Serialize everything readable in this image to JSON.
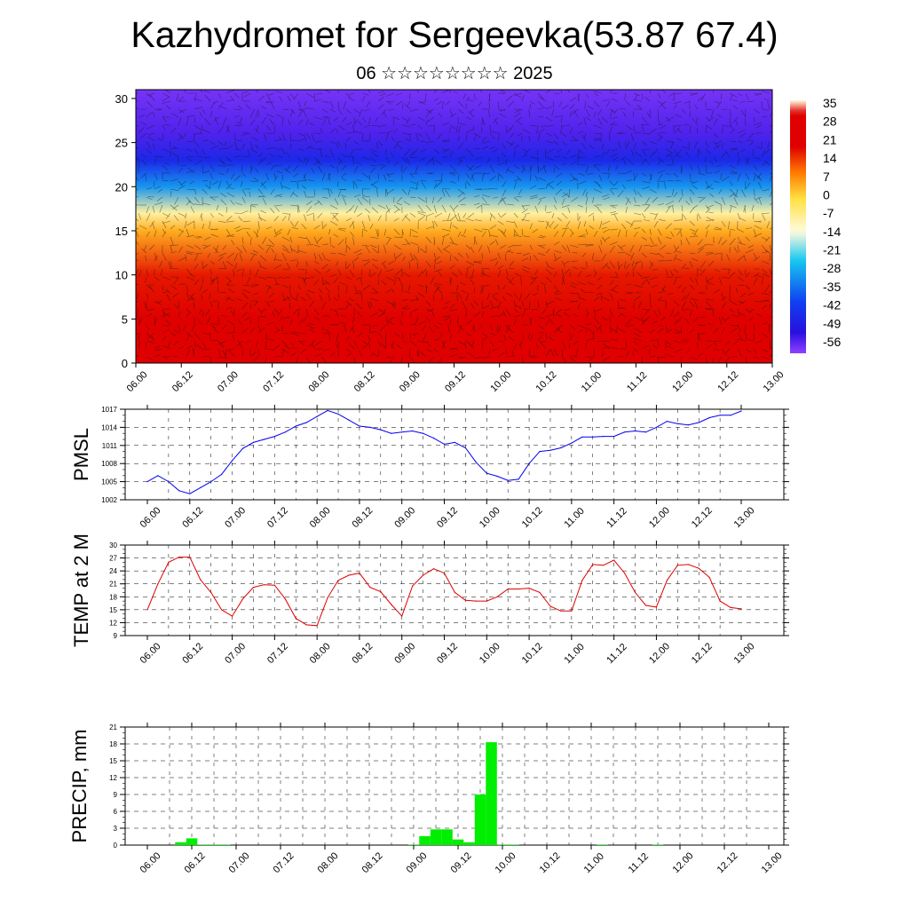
{
  "title": "Kazhydromet for Sergeevka(53.87 67.4)",
  "subtitle": "06 ☆☆☆☆☆☆☆☆ 2025",
  "time_ticks": [
    "06.00",
    "06.12",
    "07.00",
    "07.12",
    "08.00",
    "08.12",
    "09.00",
    "09.12",
    "10.00",
    "10.12",
    "11.00",
    "11.12",
    "12.00",
    "12.12",
    "13.00"
  ],
  "chart_data": [
    {
      "type": "heatmap",
      "title": "",
      "x_ticks": [
        "06.00",
        "06.12",
        "07.00",
        "07.12",
        "08.00",
        "08.12",
        "09.00",
        "09.12",
        "10.00",
        "10.12",
        "11.00",
        "11.12",
        "12.00",
        "12.12",
        "13.00"
      ],
      "y_ticks": [
        0,
        5,
        10,
        15,
        20,
        25,
        30
      ],
      "ylim": [
        0,
        31
      ],
      "overlay": "wind barbs",
      "colorbar": {
        "labels": [
          "35",
          "28",
          "21",
          "14",
          "7",
          "0",
          "-7",
          "-14",
          "-21",
          "-28",
          "-35",
          "-42",
          "-49",
          "-56"
        ],
        "range": [
          -60,
          38
        ],
        "colors": {
          "hot": "#e00000",
          "orange": "#ff7a00",
          "yellow": "#ffe040",
          "pale": "#fffbe0",
          "cyan": "#18c8f0",
          "blue": "#1040f0",
          "deep_blue": "#2810e0",
          "violet": "#9040ff"
        }
      },
      "temperature_profile": [
        {
          "level": 0,
          "value": 30
        },
        {
          "level": 5,
          "value": 25
        },
        {
          "level": 10,
          "value": 18
        },
        {
          "level": 15,
          "value": 5
        },
        {
          "level": 17,
          "value": -8
        },
        {
          "level": 20,
          "value": -30
        },
        {
          "level": 23,
          "value": -46
        },
        {
          "level": 26,
          "value": -55
        },
        {
          "level": 31,
          "value": -58
        }
      ]
    },
    {
      "type": "line",
      "ylabel": "PMSL",
      "color": "#0000ee",
      "ylim": [
        1002,
        1017
      ],
      "y_ticks": [
        1002,
        1005,
        1008,
        1011,
        1014,
        1017
      ],
      "x_ticks": [
        "06.00",
        "06.12",
        "07.00",
        "07.12",
        "08.00",
        "08.12",
        "09.00",
        "09.12",
        "10.00",
        "10.12",
        "11.00",
        "11.12",
        "12.00",
        "12.12",
        "13.00"
      ],
      "x_hours": [
        0,
        3,
        6,
        9,
        12,
        15,
        18,
        21,
        24,
        27,
        30,
        33,
        36,
        39,
        42,
        45,
        48,
        51,
        54,
        57,
        60,
        63,
        66,
        69,
        72,
        75,
        78,
        81,
        84,
        87,
        90,
        93,
        96,
        99,
        102,
        105,
        108,
        111,
        114,
        117,
        120,
        123,
        126,
        129,
        132,
        135,
        138,
        141,
        144,
        147,
        150,
        153,
        156,
        159,
        162,
        165,
        168
      ],
      "values": [
        1005.0,
        1006.0,
        1005.0,
        1003.5,
        1003.0,
        1004.0,
        1005.0,
        1006.2,
        1008.5,
        1010.5,
        1011.5,
        1012.0,
        1012.5,
        1013.2,
        1014.2,
        1014.8,
        1015.8,
        1016.8,
        1016.2,
        1015.2,
        1014.2,
        1014.0,
        1013.6,
        1013.0,
        1013.2,
        1013.4,
        1013.0,
        1012.2,
        1011.2,
        1011.5,
        1010.6,
        1008.2,
        1006.4,
        1005.9,
        1005.2,
        1005.4,
        1008.0,
        1010.0,
        1010.2,
        1010.6,
        1011.4,
        1012.4,
        1012.4,
        1012.5,
        1012.5,
        1013.2,
        1013.4,
        1013.2,
        1014.0,
        1015.0,
        1014.6,
        1014.4,
        1014.8,
        1015.6,
        1016.0,
        1016.0,
        1016.7
      ]
    },
    {
      "type": "line",
      "ylabel": "TEMP at 2 M",
      "color": "#dd0000",
      "ylim": [
        9,
        30
      ],
      "y_ticks": [
        9,
        12,
        15,
        18,
        21,
        24,
        27,
        30
      ],
      "x_ticks": [
        "06.00",
        "06.12",
        "07.00",
        "07.12",
        "08.00",
        "08.12",
        "09.00",
        "09.12",
        "10.00",
        "10.12",
        "11.00",
        "11.12",
        "12.00",
        "12.12",
        "13.00"
      ],
      "x_hours": [
        0,
        3,
        6,
        9,
        12,
        15,
        18,
        21,
        24,
        27,
        30,
        33,
        36,
        39,
        42,
        45,
        48,
        51,
        54,
        57,
        60,
        63,
        66,
        69,
        72,
        75,
        78,
        81,
        84,
        87,
        90,
        93,
        96,
        99,
        102,
        105,
        108,
        111,
        114,
        117,
        120,
        123,
        126,
        129,
        132,
        135,
        138,
        141,
        144,
        147,
        150,
        153,
        156,
        159,
        162,
        165,
        168
      ],
      "values": [
        15.0,
        21.0,
        26.0,
        27.2,
        27.2,
        22.0,
        19.0,
        15.0,
        13.5,
        17.5,
        20.2,
        20.8,
        20.7,
        17.5,
        13.0,
        11.5,
        11.3,
        17.8,
        21.8,
        23.0,
        23.5,
        20.2,
        19.2,
        16.2,
        13.5,
        20.5,
        23.0,
        24.5,
        23.5,
        19.0,
        17.2,
        17.0,
        17.0,
        18.0,
        19.8,
        19.8,
        20.0,
        19.0,
        15.8,
        14.7,
        14.7,
        21.8,
        25.5,
        25.3,
        26.5,
        23.5,
        19.0,
        16.0,
        15.6,
        21.8,
        25.3,
        25.5,
        24.6,
        22.5,
        17.0,
        15.5,
        15.2
      ]
    },
    {
      "type": "bar",
      "ylabel": "PRECIP, mm",
      "color": "#00ee00",
      "ylim": [
        0,
        21
      ],
      "y_ticks": [
        0,
        3,
        6,
        9,
        12,
        15,
        18,
        21
      ],
      "x_ticks": [
        "06.00",
        "06.12",
        "07.00",
        "07.12",
        "08.00",
        "08.12",
        "09.00",
        "09.12",
        "10.00",
        "10.12",
        "11.00",
        "11.12",
        "12.00",
        "12.12",
        "13.00"
      ],
      "bin_hours": 3,
      "bins_start_hour": [
        9,
        12,
        15,
        18,
        21,
        72,
        75,
        78,
        81,
        84,
        87,
        90,
        93,
        96,
        99,
        123,
        138
      ],
      "values": [
        0.5,
        1.2,
        0.1,
        0.1,
        0.1,
        0.1,
        1.6,
        2.8,
        2.8,
        1.0,
        0.5,
        9.0,
        18.3,
        0.1,
        0.1,
        0.1,
        0.1
      ]
    }
  ]
}
